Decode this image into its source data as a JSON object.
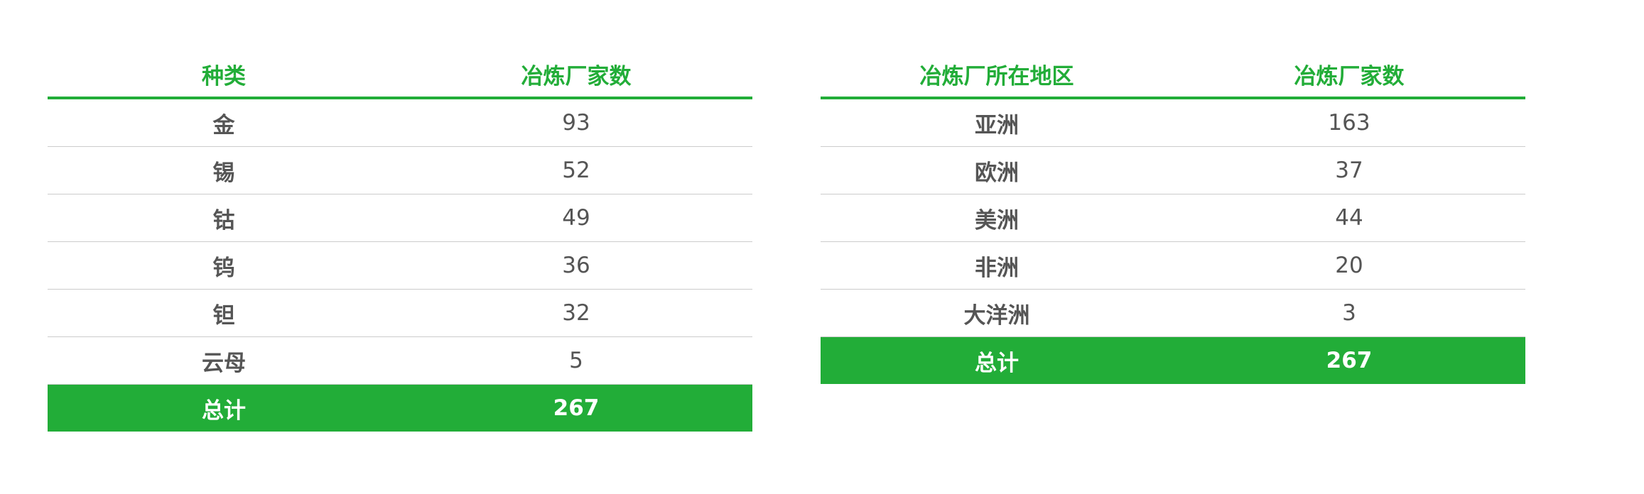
{
  "colors": {
    "accent": "#22ad38",
    "text": "#555555",
    "divider": "#cccccc"
  },
  "table_types": {
    "headers": [
      "种类",
      "冶炼厂家数"
    ],
    "rows": [
      {
        "name": "金",
        "count": "93"
      },
      {
        "name": "锡",
        "count": "52"
      },
      {
        "name": "钴",
        "count": "49"
      },
      {
        "name": "钨",
        "count": "36"
      },
      {
        "name": "钽",
        "count": "32"
      },
      {
        "name": "云母",
        "count": "5"
      }
    ],
    "total": {
      "name": "总计",
      "count": "267"
    }
  },
  "table_regions": {
    "headers": [
      "冶炼厂所在地区",
      "冶炼厂家数"
    ],
    "rows": [
      {
        "name": "亚洲",
        "count": "163"
      },
      {
        "name": "欧洲",
        "count": "37"
      },
      {
        "name": "美洲",
        "count": "44"
      },
      {
        "name": "非洲",
        "count": "20"
      },
      {
        "name": "大洋洲",
        "count": "3"
      }
    ],
    "total": {
      "name": "总计",
      "count": "267"
    }
  }
}
